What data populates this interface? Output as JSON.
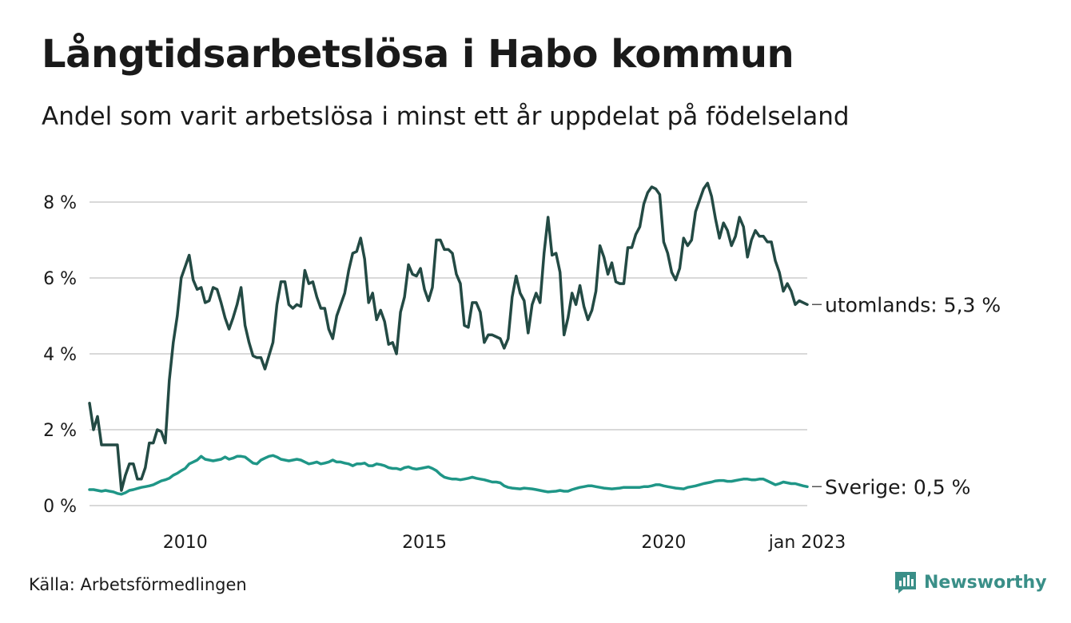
{
  "header": {
    "title": "Långtidsarbetslösa i Habo kommun",
    "subtitle": "Andel som varit arbetslösa i minst ett år uppdelat på födelseland"
  },
  "footer": {
    "source": "Källa: Arbetsförmedlingen",
    "brand": "Newsworthy"
  },
  "colors": {
    "utomlands": "#234a44",
    "sverige": "#1f9687",
    "grid": "#d9d9d9",
    "brand": "#3a8f88"
  },
  "chart_data": {
    "type": "line",
    "x_start": "2008-01",
    "x_end": "2023-01",
    "x_ticks": [
      {
        "date": "2010-01",
        "label": "2010"
      },
      {
        "date": "2015-01",
        "label": "2015"
      },
      {
        "date": "2020-01",
        "label": "2020"
      },
      {
        "date": "2023-01",
        "label": "jan 2023"
      }
    ],
    "ylim": [
      0,
      8.8
    ],
    "y_ticks": [
      {
        "value": 0,
        "label": "0 %"
      },
      {
        "value": 2,
        "label": "2 %"
      },
      {
        "value": 4,
        "label": "4 %"
      },
      {
        "value": 6,
        "label": "6 %"
      },
      {
        "value": 8,
        "label": "8 %"
      }
    ],
    "grid": true,
    "legend": "end-of-line labels",
    "series": [
      {
        "name": "utomlands",
        "end_label": "utomlands: 5,3 %",
        "color": "#234a44",
        "values": [
          2.7,
          2.0,
          2.35,
          1.6,
          1.6,
          1.6,
          1.6,
          1.6,
          0.4,
          0.8,
          1.1,
          1.1,
          0.7,
          0.7,
          1.0,
          1.65,
          1.65,
          2.0,
          1.95,
          1.65,
          3.3,
          4.3,
          5.0,
          6.0,
          6.3,
          6.6,
          5.95,
          5.7,
          5.75,
          5.35,
          5.4,
          5.75,
          5.7,
          5.35,
          4.95,
          4.65,
          4.95,
          5.3,
          5.75,
          4.75,
          4.3,
          3.95,
          3.9,
          3.9,
          3.6,
          3.95,
          4.3,
          5.3,
          5.9,
          5.9,
          5.3,
          5.2,
          5.3,
          5.25,
          6.2,
          5.85,
          5.9,
          5.5,
          5.2,
          5.2,
          4.65,
          4.4,
          5.0,
          5.3,
          5.6,
          6.2,
          6.65,
          6.7,
          7.05,
          6.5,
          5.35,
          5.6,
          4.9,
          5.15,
          4.85,
          4.25,
          4.3,
          4.0,
          5.1,
          5.5,
          6.35,
          6.1,
          6.05,
          6.25,
          5.7,
          5.4,
          5.75,
          7.0,
          7.0,
          6.75,
          6.75,
          6.65,
          6.1,
          5.85,
          4.75,
          4.7,
          5.35,
          5.35,
          5.1,
          4.3,
          4.5,
          4.5,
          4.45,
          4.4,
          4.15,
          4.4,
          5.5,
          6.05,
          5.6,
          5.4,
          4.55,
          5.3,
          5.6,
          5.35,
          6.65,
          7.6,
          6.6,
          6.65,
          6.15,
          4.5,
          4.95,
          5.6,
          5.3,
          5.8,
          5.25,
          4.9,
          5.15,
          5.65,
          6.85,
          6.55,
          6.1,
          6.4,
          5.9,
          5.85,
          5.85,
          6.8,
          6.8,
          7.15,
          7.35,
          7.95,
          8.25,
          8.4,
          8.35,
          8.2,
          6.95,
          6.65,
          6.15,
          5.95,
          6.25,
          7.05,
          6.85,
          7.0,
          7.75,
          8.05,
          8.35,
          8.5,
          8.15,
          7.55,
          7.05,
          7.45,
          7.25,
          6.85,
          7.1,
          7.6,
          7.35,
          6.55,
          7.0,
          7.25,
          7.1,
          7.1,
          6.95,
          6.95,
          6.45,
          6.15,
          5.65,
          5.85,
          5.65,
          5.3,
          5.4,
          5.35,
          5.3
        ]
      },
      {
        "name": "Sverige",
        "end_label": "Sverige: 0,5 %",
        "color": "#1f9687",
        "values": [
          0.42,
          0.42,
          0.4,
          0.38,
          0.4,
          0.38,
          0.36,
          0.32,
          0.3,
          0.34,
          0.4,
          0.42,
          0.45,
          0.48,
          0.5,
          0.52,
          0.55,
          0.6,
          0.65,
          0.68,
          0.72,
          0.8,
          0.85,
          0.92,
          0.98,
          1.1,
          1.15,
          1.2,
          1.3,
          1.22,
          1.2,
          1.18,
          1.2,
          1.22,
          1.28,
          1.22,
          1.25,
          1.3,
          1.3,
          1.28,
          1.2,
          1.12,
          1.1,
          1.2,
          1.25,
          1.3,
          1.32,
          1.28,
          1.22,
          1.2,
          1.18,
          1.2,
          1.22,
          1.2,
          1.15,
          1.1,
          1.12,
          1.15,
          1.1,
          1.12,
          1.15,
          1.2,
          1.15,
          1.15,
          1.12,
          1.1,
          1.05,
          1.1,
          1.1,
          1.12,
          1.05,
          1.05,
          1.1,
          1.08,
          1.05,
          1.0,
          0.98,
          0.98,
          0.95,
          1.0,
          1.02,
          0.98,
          0.96,
          0.98,
          1.0,
          1.02,
          0.98,
          0.92,
          0.82,
          0.75,
          0.72,
          0.7,
          0.7,
          0.68,
          0.7,
          0.72,
          0.75,
          0.72,
          0.7,
          0.68,
          0.65,
          0.62,
          0.62,
          0.6,
          0.52,
          0.48,
          0.46,
          0.45,
          0.44,
          0.46,
          0.45,
          0.44,
          0.42,
          0.4,
          0.38,
          0.36,
          0.37,
          0.38,
          0.4,
          0.38,
          0.38,
          0.42,
          0.45,
          0.48,
          0.5,
          0.52,
          0.52,
          0.5,
          0.48,
          0.46,
          0.45,
          0.44,
          0.45,
          0.46,
          0.48,
          0.48,
          0.48,
          0.48,
          0.48,
          0.5,
          0.5,
          0.52,
          0.55,
          0.55,
          0.52,
          0.5,
          0.48,
          0.46,
          0.45,
          0.44,
          0.48,
          0.5,
          0.52,
          0.55,
          0.58,
          0.6,
          0.62,
          0.65,
          0.66,
          0.66,
          0.64,
          0.64,
          0.66,
          0.68,
          0.7,
          0.7,
          0.68,
          0.68,
          0.7,
          0.7,
          0.65,
          0.6,
          0.55,
          0.58,
          0.62,
          0.6,
          0.58,
          0.58,
          0.55,
          0.52,
          0.5
        ]
      }
    ]
  }
}
